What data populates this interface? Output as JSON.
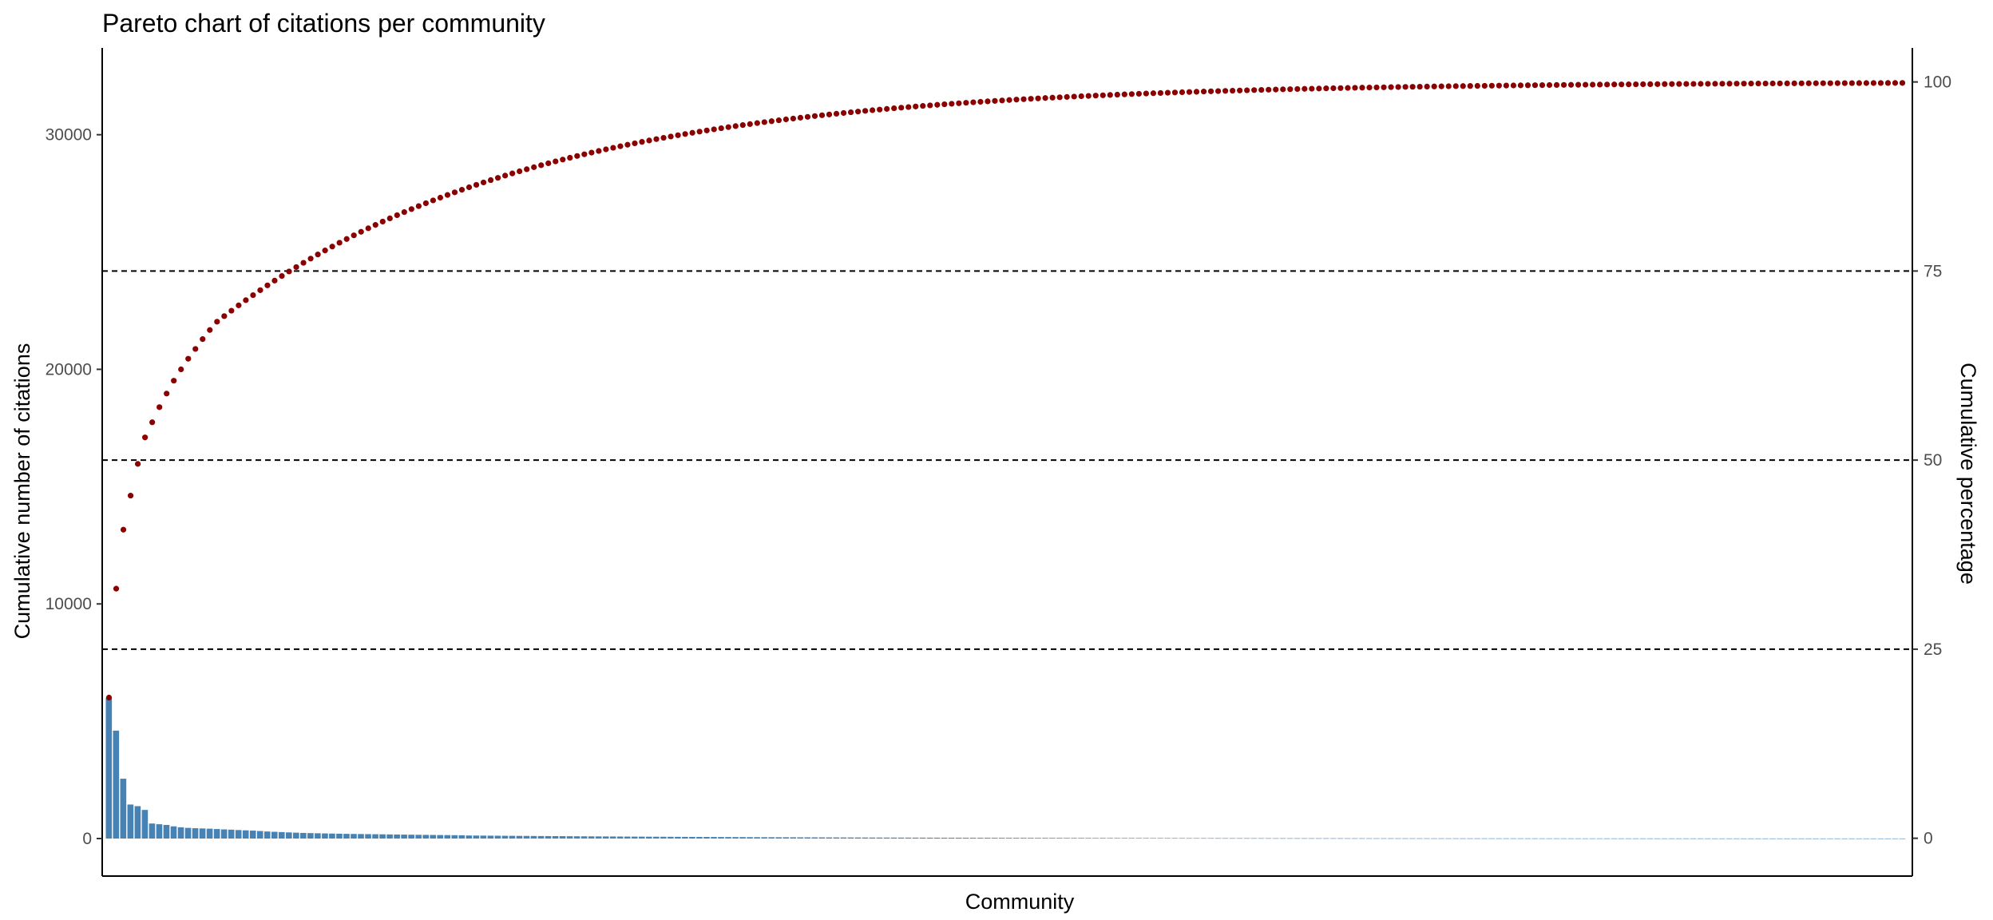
{
  "chart_data": {
    "type": "bar",
    "title": "Pareto chart of citations per community",
    "xlabel": "Community",
    "ylabel": "Cumulative number of citations",
    "y2label": "Cumulative percentage",
    "x_tick_labels": [],
    "ylim": [
      -1600,
      33700
    ],
    "y2lim": [
      -5,
      104.5
    ],
    "y_ticks": [
      0,
      10000,
      20000,
      30000
    ],
    "y_tick_labels": [
      "0",
      "10000",
      "20000",
      "30000"
    ],
    "y2_ticks": [
      0,
      25,
      50,
      75,
      100
    ],
    "y2_tick_labels": [
      "0",
      "25",
      "50",
      "75",
      "100"
    ],
    "reference_lines_percent": [
      25,
      50,
      75
    ],
    "grid": false,
    "legend": "none",
    "colors": {
      "bars": "#4682b4",
      "cumulative": "#8b0000",
      "reference": "#000000"
    },
    "n_communities": 250,
    "series": [
      {
        "type": "bar",
        "axis": "left",
        "values_head": [
          6000,
          4600,
          2550,
          1450,
          1380,
          1220,
          640,
          610,
          580,
          520,
          480,
          455,
          440,
          430,
          420,
          405,
          390,
          378,
          362,
          350,
          338,
          320,
          300,
          288,
          275,
          262,
          250,
          240,
          232,
          225,
          218,
          212,
          206,
          200,
          196,
          192,
          188,
          184,
          180,
          176,
          172,
          168,
          164,
          160,
          156,
          152,
          149,
          146,
          143,
          140
        ],
        "tail_start": 130,
        "tail_decay": 0.02
      },
      {
        "type": "scatter",
        "axis": "right",
        "values_head_percent": [
          18.6,
          33.0,
          40.8,
          45.3,
          49.5,
          53.0,
          55.0,
          57.0,
          58.8,
          60.5,
          62.0,
          63.4,
          64.7,
          66.0,
          67.2,
          68.3
        ],
        "approach_rate": 0.0235,
        "final_percent": 100
      }
    ]
  }
}
